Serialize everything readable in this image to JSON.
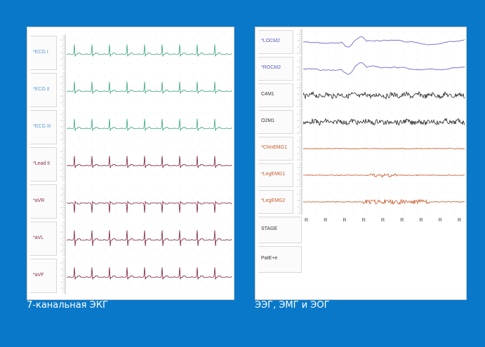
{
  "ecg": {
    "caption": "7-канальная ЭКГ",
    "channels": [
      {
        "label": "*ECG I",
        "color": "#3aa67a",
        "label_color": "#5b9bd5",
        "kind": "normal"
      },
      {
        "label": "*ECG II",
        "color": "#3aa67a",
        "label_color": "#5b9bd5",
        "kind": "normal"
      },
      {
        "label": "*ECG III",
        "color": "#3aa67a",
        "label_color": "#5b9bd5",
        "kind": "normal"
      },
      {
        "label": "*Lead II",
        "color": "#7a1f3a",
        "label_color": "#8a2a4a",
        "kind": "normal"
      },
      {
        "label": "*aVR",
        "color": "#7a1f3a",
        "label_color": "#8a2a4a",
        "kind": "inverted"
      },
      {
        "label": "*aVL",
        "color": "#7a1f3a",
        "label_color": "#8a2a4a",
        "kind": "biphasic"
      },
      {
        "label": "*aVF",
        "color": "#7a1f3a",
        "label_color": "#8a2a4a",
        "kind": "normal"
      }
    ]
  },
  "eeg": {
    "caption": "ЭЭГ, ЭМГ и ЭОГ",
    "channels": [
      {
        "label": "*LOCM2",
        "color": "#5a5ac8",
        "label_color": "#5a5ac8",
        "kind": "eog"
      },
      {
        "label": "*ROCM2",
        "color": "#5a5ac8",
        "label_color": "#5a5ac8",
        "kind": "eog"
      },
      {
        "label": "C4M1",
        "color": "#222222",
        "label_color": "#333333",
        "kind": "eeg"
      },
      {
        "label": "O2M1",
        "color": "#222222",
        "label_color": "#333333",
        "kind": "eeg"
      },
      {
        "label": "*ChinEMG1",
        "color": "#c85a2a",
        "label_color": "#c85a2a",
        "kind": "emg"
      },
      {
        "label": "*LegEMG1",
        "color": "#c85a2a",
        "label_color": "#c85a2a",
        "kind": "emg_burst"
      },
      {
        "label": "*LegEMG2",
        "color": "#c85a2a",
        "label_color": "#c85a2a",
        "kind": "emg_burst2"
      }
    ],
    "stage_label": "STAGE",
    "stage_values": [
      "R",
      "R",
      "R",
      "R",
      "R",
      "R",
      "R",
      "R",
      "R"
    ],
    "position_label": "PatE+e"
  }
}
